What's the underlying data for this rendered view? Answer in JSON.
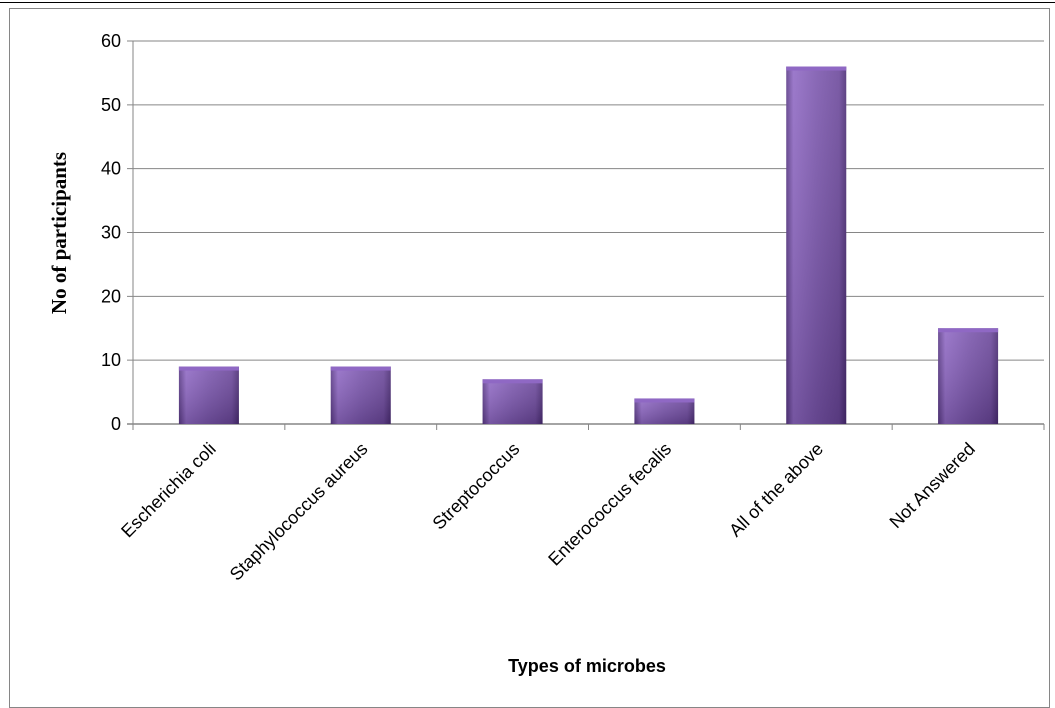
{
  "chart_data": {
    "type": "bar",
    "categories": [
      "Escherichia coli",
      "Staphylococcus aureus",
      "Streptococcus",
      "Enterococcus fecalis",
      "All of the above",
      "Not Answered"
    ],
    "values": [
      9,
      9,
      7,
      4,
      56,
      15
    ],
    "title": "",
    "xlabel": "Types of microbes",
    "ylabel": "No of participants",
    "ylim": [
      0,
      60
    ],
    "yticks": [
      0,
      10,
      20,
      30,
      40,
      50,
      60
    ],
    "grid": "horizontal",
    "legend": "none",
    "colors": {
      "bar_light": "#8f68c4",
      "bar_mid": "#7650a8",
      "bar_dark": "#4f2f7c",
      "gridline": "#868686"
    }
  }
}
